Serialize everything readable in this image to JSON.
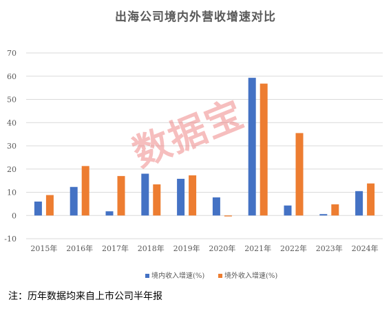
{
  "chart_data": {
    "type": "bar",
    "title": "出海公司境内外营收增速对比",
    "categories": [
      "2015年",
      "2016年",
      "2017年",
      "2018年",
      "2019年",
      "2020年",
      "2021年",
      "2022年",
      "2023年",
      "2024年"
    ],
    "series": [
      {
        "name": "境内收入增速(%)",
        "color": "#4472C4",
        "values": [
          6,
          12.3,
          1.8,
          18,
          15.8,
          7.8,
          59.3,
          4.3,
          0.6,
          10.5
        ]
      },
      {
        "name": "境外收入增速(%)",
        "color": "#ED7D31",
        "values": [
          8.8,
          21.3,
          17,
          13.4,
          17.3,
          -0.4,
          56.8,
          35.5,
          4.8,
          13.8
        ]
      }
    ],
    "ylim": [
      -10,
      70
    ],
    "yticks": [
      -10,
      0,
      10,
      20,
      30,
      40,
      50,
      60,
      70
    ],
    "grid": true,
    "legend": "bottom"
  },
  "watermark": "数据宝",
  "footnote": "注：历年数据均来自上市公司半年报"
}
